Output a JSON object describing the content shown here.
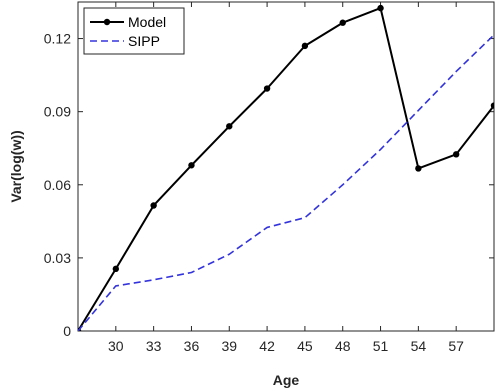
{
  "chart_data": {
    "type": "line",
    "title": "",
    "xlabel": "Age",
    "ylabel": "Var(log(w))",
    "xlim": [
      27,
      60
    ],
    "ylim": [
      0,
      0.135
    ],
    "xticks": [
      30,
      33,
      36,
      39,
      42,
      45,
      48,
      51,
      54,
      57
    ],
    "xtick_labels": [
      "30",
      "33",
      "36",
      "39",
      "42",
      "45",
      "48",
      "51",
      "54",
      "57"
    ],
    "yticks": [
      0,
      0.03,
      0.06,
      0.09,
      0.12
    ],
    "ytick_labels": [
      "0",
      "0.03",
      "0.06",
      "0.09",
      "0.12"
    ],
    "grid": false,
    "legend_position": "top-left",
    "series": [
      {
        "name": "Model",
        "color": "#000000",
        "style": "solid",
        "marker": "circle",
        "x": [
          27,
          30,
          33,
          36,
          39,
          42,
          45,
          48,
          51,
          54,
          57,
          60
        ],
        "y": [
          0.0,
          0.0255,
          0.0515,
          0.068,
          0.084,
          0.0995,
          0.117,
          0.1265,
          0.1325,
          0.0667,
          0.0725,
          0.0925
        ]
      },
      {
        "name": "SIPP",
        "color": "#3333dd",
        "style": "dashed",
        "marker": "none",
        "x": [
          27,
          30,
          33,
          36,
          39,
          42,
          45,
          48,
          51,
          54,
          57,
          60
        ],
        "y": [
          0.0,
          0.0185,
          0.021,
          0.024,
          0.0315,
          0.0425,
          0.0465,
          0.06,
          0.0745,
          0.0905,
          0.1065,
          0.1215
        ]
      }
    ]
  }
}
